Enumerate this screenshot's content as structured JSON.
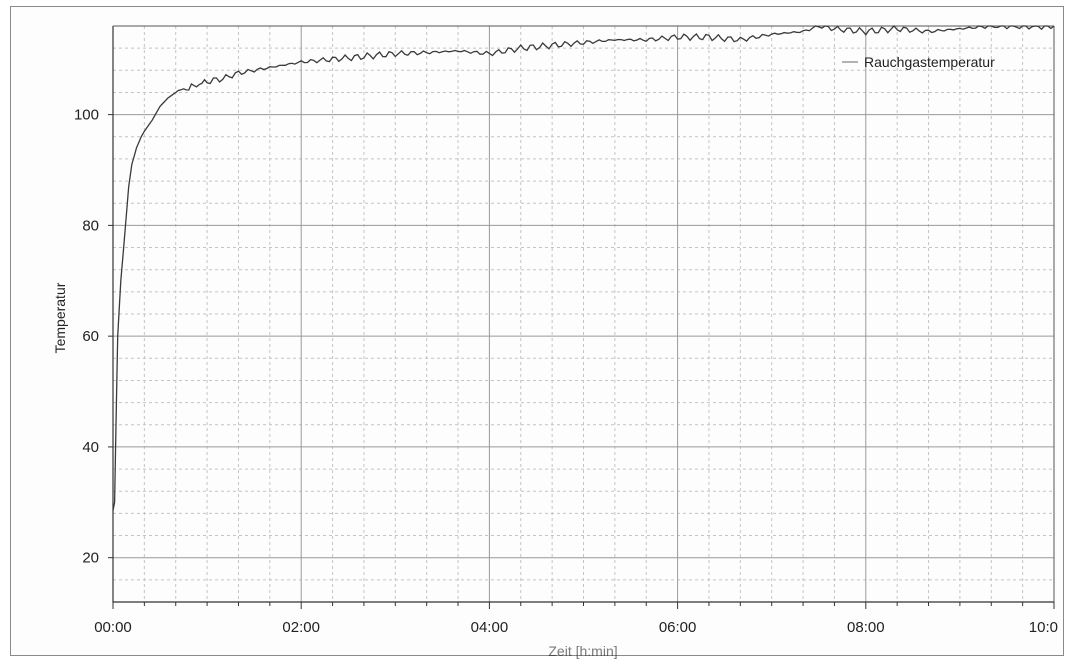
{
  "chart_data": {
    "type": "line",
    "title": "",
    "xlabel": "Zeit [h:min]",
    "ylabel": "Temperatur",
    "x_ticks": [
      "00:00",
      "02:00",
      "04:00",
      "06:00",
      "08:00",
      "10:0"
    ],
    "y_ticks": [
      20,
      40,
      60,
      80,
      100
    ],
    "xlim": [
      0,
      600
    ],
    "ylim": [
      12,
      116
    ],
    "x_unit": "minutes",
    "grid": true,
    "legend_position": "top-right",
    "colors": {
      "line": "#3a3a3a",
      "grid_major": "#9a9a9a",
      "grid_minor": "#c4c4c4"
    },
    "series": [
      {
        "name": "Rauchgastemperatur",
        "x": [
          0,
          1,
          2,
          3,
          5,
          8,
          10,
          12,
          15,
          18,
          20,
          25,
          30,
          35,
          40,
          45,
          50,
          55,
          60,
          70,
          80,
          90,
          100,
          110,
          120,
          140,
          160,
          180,
          200,
          220,
          240,
          260,
          280,
          300,
          320,
          340,
          360,
          380,
          400,
          420,
          440,
          450,
          460,
          480,
          500,
          520,
          540,
          560,
          580,
          600
        ],
        "y": [
          28.5,
          30,
          45,
          60,
          70,
          80,
          87,
          91,
          94,
          96,
          97,
          99,
          101.5,
          103,
          104,
          104.5,
          105,
          105.5,
          106,
          106.5,
          107.5,
          108,
          108.5,
          109,
          109.5,
          110,
          110.5,
          111,
          111.2,
          111.5,
          111,
          112,
          112.5,
          113,
          113.5,
          113.5,
          114,
          114,
          113.5,
          114.5,
          115,
          116,
          115.5,
          115,
          115.5,
          115,
          115.5,
          116,
          116,
          116
        ]
      }
    ]
  }
}
